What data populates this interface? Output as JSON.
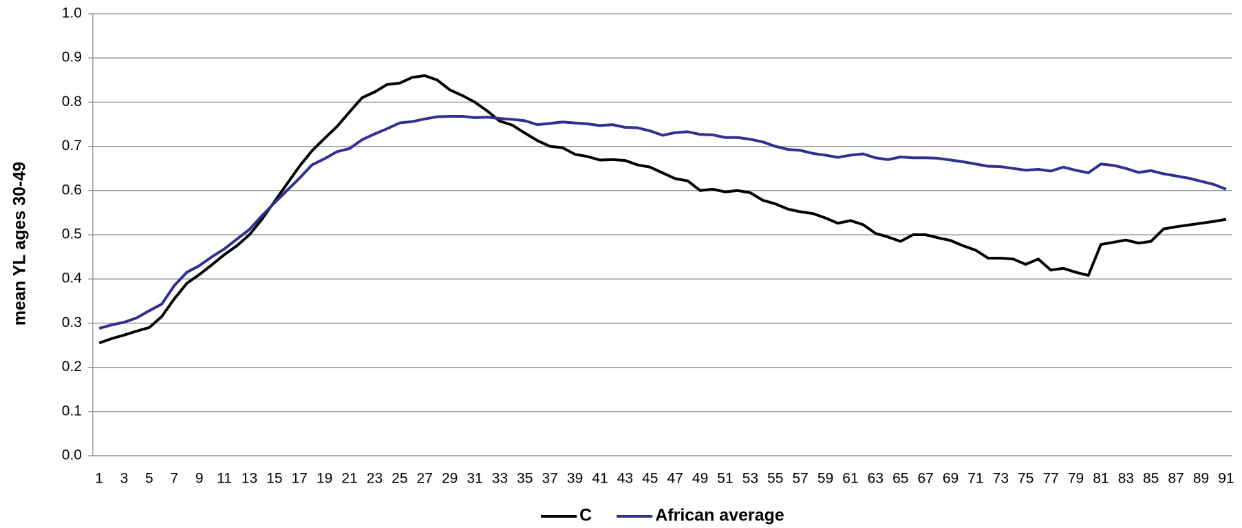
{
  "chart_data": {
    "type": "line",
    "y_label": "mean YL ages 30-49",
    "categories": [
      1,
      null,
      3,
      null,
      5,
      null,
      7,
      null,
      9,
      null,
      11,
      null,
      13,
      null,
      15,
      null,
      17,
      null,
      19,
      null,
      21,
      null,
      23,
      null,
      25,
      null,
      27,
      null,
      29,
      null,
      31,
      null,
      33,
      null,
      35,
      null,
      37,
      null,
      39,
      null,
      41,
      null,
      43,
      null,
      45,
      null,
      47,
      null,
      49,
      null,
      51,
      null,
      53,
      null,
      55,
      null,
      57,
      null,
      59,
      null,
      61,
      null,
      63,
      null,
      65,
      null,
      67,
      null,
      69,
      null,
      71,
      null,
      73,
      null,
      75,
      null,
      77,
      null,
      79,
      null,
      81,
      null,
      83,
      null,
      85,
      null,
      87,
      null,
      89,
      null,
      91
    ],
    "series": [
      {
        "name": "C",
        "color": "#000000",
        "values": [
          0.255,
          0.265,
          0.273,
          0.282,
          0.29,
          0.315,
          0.355,
          0.39,
          0.41,
          0.432,
          0.455,
          0.475,
          0.5,
          0.535,
          0.575,
          0.615,
          0.655,
          0.69,
          0.718,
          0.745,
          0.778,
          0.81,
          0.823,
          0.84,
          0.843,
          0.856,
          0.86,
          0.85,
          0.828,
          0.815,
          0.8,
          0.78,
          0.757,
          0.748,
          0.73,
          0.713,
          0.7,
          0.697,
          0.682,
          0.677,
          0.669,
          0.67,
          0.668,
          0.658,
          0.653,
          0.64,
          0.627,
          0.622,
          0.6,
          0.603,
          0.597,
          0.6,
          0.595,
          0.578,
          0.57,
          0.558,
          0.552,
          0.548,
          0.538,
          0.526,
          0.532,
          0.523,
          0.503,
          0.495,
          0.485,
          0.5,
          0.5,
          0.493,
          0.487,
          0.475,
          0.465,
          0.447,
          0.447,
          0.445,
          0.433,
          0.445,
          0.42,
          0.424,
          0.415,
          0.408,
          0.478,
          0.483,
          0.488,
          0.481,
          0.485,
          0.513,
          0.518,
          0.522,
          0.526,
          0.53,
          0.535
        ]
      },
      {
        "name": "African average",
        "color": "#2e3192",
        "values": [
          0.288,
          0.296,
          0.302,
          0.312,
          0.328,
          0.343,
          0.385,
          0.415,
          0.43,
          0.45,
          0.468,
          0.49,
          0.512,
          0.543,
          0.572,
          0.6,
          0.628,
          0.658,
          0.672,
          0.688,
          0.695,
          0.715,
          0.728,
          0.74,
          0.753,
          0.756,
          0.762,
          0.767,
          0.768,
          0.768,
          0.765,
          0.766,
          0.763,
          0.761,
          0.758,
          0.749,
          0.752,
          0.755,
          0.753,
          0.751,
          0.747,
          0.749,
          0.743,
          0.742,
          0.735,
          0.725,
          0.731,
          0.733,
          0.727,
          0.726,
          0.72,
          0.72,
          0.716,
          0.71,
          0.7,
          0.693,
          0.691,
          0.684,
          0.68,
          0.675,
          0.68,
          0.683,
          0.674,
          0.67,
          0.676,
          0.674,
          0.674,
          0.673,
          0.669,
          0.665,
          0.66,
          0.655,
          0.654,
          0.65,
          0.646,
          0.648,
          0.644,
          0.653,
          0.646,
          0.64,
          0.66,
          0.657,
          0.65,
          0.641,
          0.645,
          0.638,
          0.633,
          0.628,
          0.621,
          0.614,
          0.603
        ]
      }
    ],
    "ylim": [
      0,
      1
    ],
    "yticks": [
      {
        "value": 0,
        "label": "0.0"
      },
      0.1,
      0.2,
      0.3,
      0.4,
      0.5,
      0.6,
      0.7,
      0.8,
      0.9,
      {
        "value": 1,
        "label": "1.0"
      }
    ],
    "grid": true,
    "legend": "bottom"
  }
}
